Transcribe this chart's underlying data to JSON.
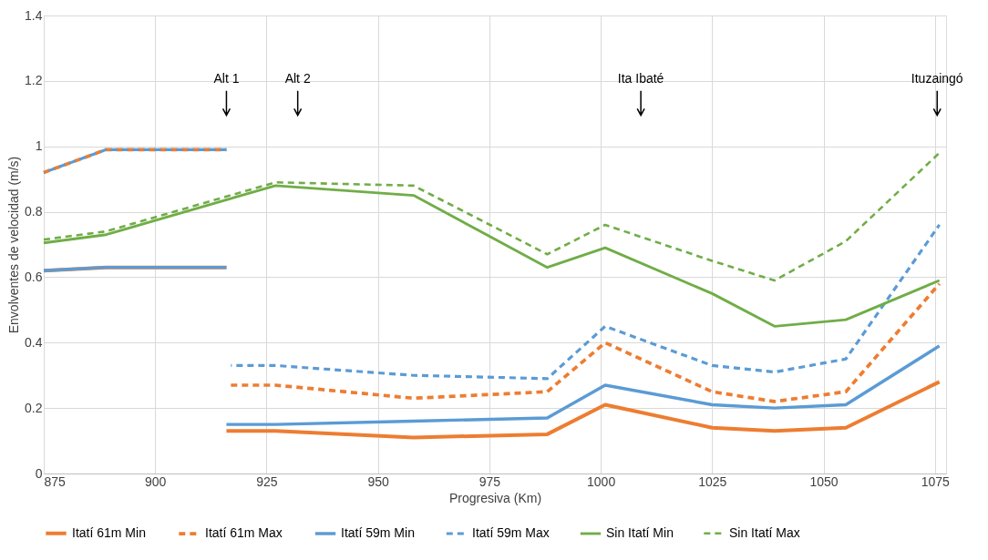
{
  "chart_data": {
    "type": "line",
    "xlabel": "Progresiva (Km)",
    "ylabel": "Envolventes de velocidad (m/s)",
    "xlim": [
      875,
      1077.5
    ],
    "xticks": [
      875,
      900,
      925,
      950,
      975,
      1000,
      1025,
      1050,
      1075
    ],
    "ylim": [
      0,
      1.4
    ],
    "yticks": [
      0,
      0.2,
      0.4,
      0.6,
      0.8,
      1,
      1.2,
      1.4
    ],
    "grid": true,
    "legend": "bottom",
    "marker": "none",
    "ref_lines": [
      {
        "axis": "x",
        "value": 916,
        "label": "Alt 1"
      },
      {
        "axis": "x",
        "value": 932,
        "label": "Alt 2"
      },
      {
        "axis": "x",
        "value": 1009,
        "label": "Ita Ibaté"
      },
      {
        "axis": "x",
        "value": 1075.5,
        "label": "Ituzaingó"
      }
    ],
    "series": [
      {
        "name": "Itatí 61m Min",
        "color": "#ed7d31",
        "line_style": "solid",
        "x": [
          875,
          889,
          916,
          null,
          916,
          927,
          958,
          988,
          1001,
          1025,
          1039,
          1055,
          1076
        ],
        "values": [
          0.62,
          0.63,
          0.63,
          null,
          0.13,
          0.13,
          0.11,
          0.12,
          0.21,
          0.14,
          0.13,
          0.14,
          0.28
        ]
      },
      {
        "name": "Itatí 61m Max",
        "color": "#ed7d31",
        "line_style": "dashed",
        "x": [
          875,
          889,
          916,
          null,
          917,
          927,
          958,
          988,
          1001,
          1025,
          1039,
          1055,
          1076
        ],
        "values": [
          0.92,
          0.99,
          0.99,
          null,
          0.27,
          0.27,
          0.23,
          0.25,
          0.4,
          0.25,
          0.22,
          0.25,
          0.58
        ]
      },
      {
        "name": "Itatí 59m Min",
        "color": "#5b9bd5",
        "line_style": "solid",
        "x": [
          875,
          889,
          916,
          null,
          916,
          927,
          958,
          988,
          1001,
          1025,
          1039,
          1055,
          1076
        ],
        "values": [
          0.62,
          0.63,
          0.63,
          null,
          0.15,
          0.15,
          0.16,
          0.17,
          0.27,
          0.21,
          0.2,
          0.21,
          0.39
        ]
      },
      {
        "name": "Itatí 59m Max",
        "color": "#5b9bd5",
        "line_style": "dashed",
        "x": [
          875,
          889,
          916,
          null,
          917,
          927,
          958,
          988,
          1001,
          1025,
          1039,
          1055,
          1076
        ],
        "values": [
          0.92,
          0.99,
          0.99,
          null,
          0.33,
          0.33,
          0.3,
          0.29,
          0.45,
          0.33,
          0.31,
          0.35,
          0.76
        ]
      },
      {
        "name": "Sin Itatí Min",
        "color": "#70ad47",
        "line_style": "solid",
        "x": [
          875,
          889,
          927,
          958,
          988,
          1001,
          1025,
          1039,
          1055,
          1076
        ],
        "values": [
          0.705,
          0.73,
          0.88,
          0.85,
          0.63,
          0.69,
          0.55,
          0.45,
          0.47,
          0.59
        ]
      },
      {
        "name": "Sin Itatí Max",
        "color": "#70ad47",
        "line_style": "dashed",
        "x": [
          875,
          889,
          927,
          958,
          988,
          1001,
          1025,
          1039,
          1055,
          1076
        ],
        "values": [
          0.715,
          0.74,
          0.89,
          0.88,
          0.67,
          0.76,
          0.65,
          0.59,
          0.71,
          0.98
        ]
      }
    ]
  }
}
